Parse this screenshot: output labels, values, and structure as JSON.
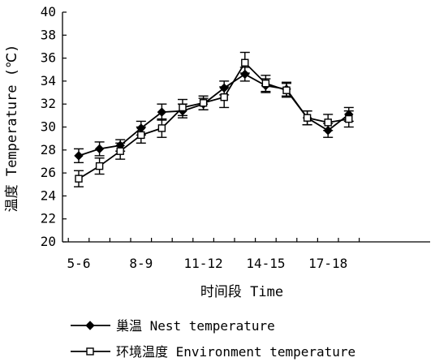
{
  "chart_data": {
    "type": "line",
    "ylabel": "温度 Temperature (℃)",
    "xlabel": "时间段 Time",
    "ylim": [
      20,
      40
    ],
    "yticks": [
      20,
      22,
      24,
      26,
      28,
      30,
      32,
      34,
      36,
      38,
      40
    ],
    "categories": [
      "5-6",
      "6-7",
      "7-8",
      "8-9",
      "9-10",
      "10-11",
      "11-12",
      "12-13",
      "13-14",
      "14-15",
      "15-16",
      "16-17",
      "17-18",
      "18-19"
    ],
    "tick_labels": [
      {
        "index": 0,
        "text": "5-6"
      },
      {
        "index": 3,
        "text": "8-9"
      },
      {
        "index": 6,
        "text": "11-12"
      },
      {
        "index": 9,
        "text": "14-15"
      },
      {
        "index": 12,
        "text": "17-18"
      }
    ],
    "grid": false,
    "legend_position": "bottom",
    "series": [
      {
        "name": "巢温  Nest temperature",
        "marker": "diamond",
        "color": "#000000",
        "values": [
          27.5,
          28.1,
          28.4,
          29.9,
          31.3,
          31.4,
          32.0,
          33.4,
          34.6,
          33.6,
          33.3,
          30.8,
          29.7,
          31.1
        ],
        "errors": [
          0.6,
          0.6,
          0.5,
          0.6,
          0.7,
          0.6,
          0.5,
          0.6,
          0.6,
          0.6,
          0.6,
          0.6,
          0.6,
          0.6
        ]
      },
      {
        "name": "环境温度 Environment temperature",
        "marker": "square",
        "color": "#000000",
        "values": [
          25.5,
          26.6,
          27.9,
          29.3,
          29.9,
          31.7,
          32.1,
          32.6,
          35.6,
          33.8,
          33.2,
          30.8,
          30.4,
          30.7
        ],
        "errors": [
          0.7,
          0.7,
          0.7,
          0.7,
          0.8,
          0.7,
          0.6,
          0.9,
          0.9,
          0.7,
          0.6,
          0.6,
          0.7,
          0.7
        ]
      }
    ]
  }
}
